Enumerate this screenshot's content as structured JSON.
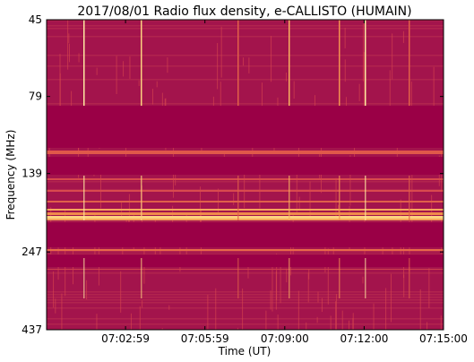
{
  "chart_data": {
    "type": "spectrogram",
    "title": "2017/08/01  Radio flux density, e-CALLISTO (HUMAIN)",
    "xlabel": "Time (UT)",
    "ylabel": "Frequency (MHz)",
    "xlim": [
      25200,
      26100
    ],
    "xticks": [
      {
        "value": 25379,
        "label": "07:02:59"
      },
      {
        "value": 25559,
        "label": "07:05:59"
      },
      {
        "value": 25740,
        "label": "07:09:00"
      },
      {
        "value": 25920,
        "label": "07:12:00"
      },
      {
        "value": 26100,
        "label": "07:15:00"
      }
    ],
    "ylim": [
      45,
      437
    ],
    "yticks": [
      45,
      79,
      139,
      247,
      437
    ],
    "ylog": true,
    "yinverted": true
  }
}
